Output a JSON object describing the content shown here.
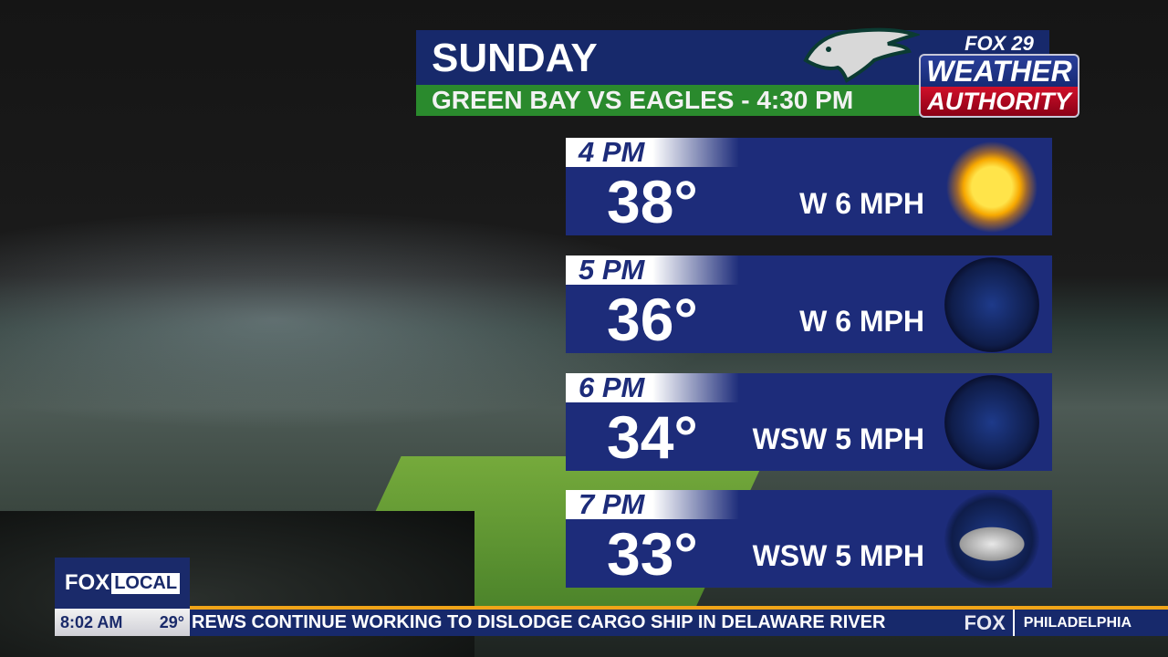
{
  "header": {
    "day": "Sunday",
    "subtitle": "GREEN BAY VS EAGLES - 4:30 PM"
  },
  "logo": {
    "station": "FOX 29",
    "line1": "WEATHER",
    "line2": "AUTHORITY"
  },
  "forecast": [
    {
      "time": "4 PM",
      "temp": "38°",
      "wind": "W 6 MPH",
      "icon": "sun-icon"
    },
    {
      "time": "5 PM",
      "temp": "36°",
      "wind": "W 6 MPH",
      "icon": "clear-night-icon"
    },
    {
      "time": "6 PM",
      "temp": "34°",
      "wind": "WSW 5 MPH",
      "icon": "clear-night-icon"
    },
    {
      "time": "7 PM",
      "temp": "33°",
      "wind": "WSW 5 MPH",
      "icon": "partly-cloudy-night-icon"
    }
  ],
  "bug": {
    "brand": "FOX",
    "brand2": "LOCAL",
    "time": "8:02 AM",
    "temp": "29°"
  },
  "ticker": {
    "message": "REWS CONTINUE WORKING TO DISLODGE CARGO SHIP IN DELAWARE RIVER",
    "network": "FOX",
    "city": "PHILADELPHIA"
  },
  "colors": {
    "navy": "#1d2c7a",
    "green": "#2a8a2d",
    "accent": "#f0a418",
    "red": "#d0102a"
  }
}
